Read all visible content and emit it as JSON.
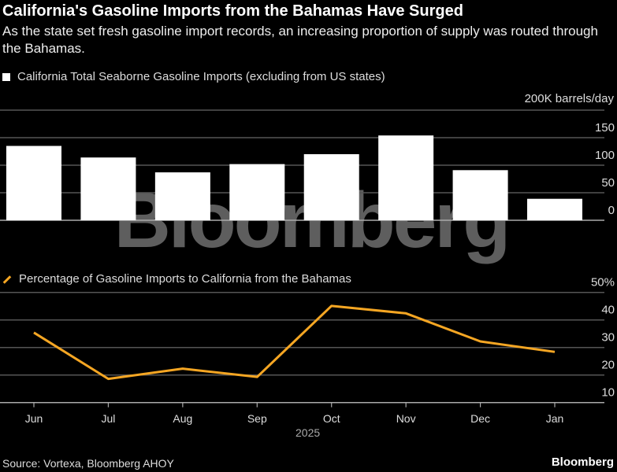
{
  "title": "California's Gasoline Imports from the Bahamas Have Surged",
  "subtitle": "As the state set fresh gasoline import records, an increasing proportion of supply was routed through the Bahamas.",
  "source": "Source: Vortexa, Bloomberg AHOY",
  "brand": "Bloomberg",
  "watermark": "Bloomberg",
  "colors": {
    "bar": "#ffffff",
    "line": "#f5a623",
    "grid": "#555555",
    "background": "#000000"
  },
  "chart_data": [
    {
      "type": "bar",
      "legend": "California Total Seaborne Gasoline Imports (excluding from US states)",
      "unit_label": "200K barrels/day",
      "categories": [
        "Jun",
        "Jul",
        "Aug",
        "Sep",
        "Oct",
        "Nov",
        "Dec",
        "Jan"
      ],
      "values": [
        135,
        114,
        87,
        102,
        120,
        154,
        91,
        39
      ],
      "ylim": [
        0,
        200
      ],
      "yticks": [
        0,
        50,
        100,
        150,
        200
      ],
      "ytick_labels": [
        "0",
        "50",
        "100",
        "150"
      ]
    },
    {
      "type": "line",
      "legend": "Percentage of Gasoline Imports to California from the Bahamas",
      "categories": [
        "Jun",
        "Jul",
        "Aug",
        "Sep",
        "Oct",
        "Nov",
        "Dec",
        "Jan"
      ],
      "values": [
        35.4,
        18.6,
        22.3,
        19.3,
        45.1,
        42.4,
        32.2,
        28.4
      ],
      "ylim": [
        10,
        50
      ],
      "yticks": [
        10,
        20,
        30,
        40,
        50
      ],
      "ytick_labels": [
        "10",
        "20",
        "30",
        "40",
        "50%"
      ],
      "xlabel": "2025"
    }
  ]
}
